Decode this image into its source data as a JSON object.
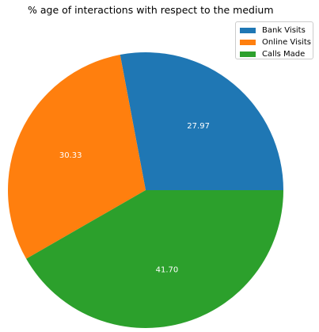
{
  "chart_data": {
    "type": "pie",
    "title": "% age of interactions with respect to the medium",
    "categories": [
      "Bank Visits",
      "Online Visits",
      "Calls Made"
    ],
    "values": [
      27.97,
      30.33,
      41.7
    ],
    "value_labels": [
      "27.97",
      "30.33",
      "41.70"
    ],
    "colors": [
      "#1f77b4",
      "#ff7f0e",
      "#2ca02c"
    ],
    "legend_placement": "top-right",
    "start_angle_deg": 0,
    "direction": "counterclockwise"
  }
}
